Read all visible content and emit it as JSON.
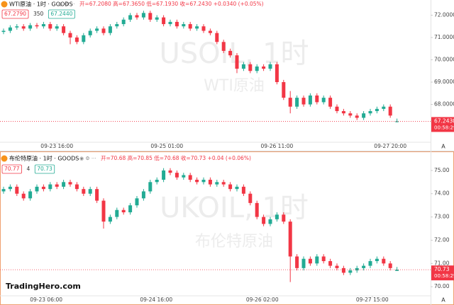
{
  "chart_data": [
    {
      "type": "candlestick",
      "title": "WTI原油 · 1时 · GOODS",
      "subtitle": "开=67.2080 高=67.3650 低=67.1930 收=67.2430 +0.0340 (+0.05%)",
      "quote": {
        "sell": "67.2790",
        "spread": "350",
        "buy": "67.2440"
      },
      "watermark": [
        "USOIL, 1时",
        "WTI原油"
      ],
      "up_color": "#22ab94",
      "down_color": "#f23645",
      "open": [
        71.25,
        71.3,
        71.45,
        71.5,
        71.4,
        71.55,
        71.5,
        71.6,
        71.4,
        71.5,
        71.2,
        71.0,
        70.8,
        71.1,
        71.3,
        71.4,
        71.2,
        71.5,
        71.6,
        71.8,
        72.0,
        71.9,
        72.1,
        71.8,
        71.9,
        71.6,
        71.7,
        71.5,
        71.6,
        71.4,
        71.5,
        71.3,
        71.2,
        70.8,
        70.4,
        70.2,
        69.6,
        69.8,
        69.5,
        69.7,
        69.6,
        69.8,
        69.0,
        68.3,
        67.9,
        68.3,
        68.0,
        68.4,
        68.1,
        68.3,
        67.9,
        67.7,
        67.6,
        67.5,
        67.4,
        67.6,
        67.7,
        67.8,
        67.9,
        67.208
      ],
      "high": [
        71.4,
        71.55,
        71.6,
        71.6,
        71.65,
        71.65,
        71.7,
        71.7,
        71.6,
        71.6,
        71.3,
        71.1,
        71.2,
        71.4,
        71.5,
        71.5,
        71.6,
        71.7,
        71.9,
        72.1,
        72.1,
        72.2,
        72.2,
        72.0,
        72.0,
        71.8,
        71.8,
        71.7,
        71.7,
        71.6,
        71.6,
        71.4,
        71.3,
        70.9,
        70.5,
        70.3,
        69.9,
        69.9,
        69.8,
        69.8,
        69.9,
        69.9,
        69.1,
        68.6,
        68.4,
        68.4,
        68.5,
        68.5,
        68.4,
        68.4,
        68.0,
        67.8,
        67.7,
        67.6,
        67.7,
        67.8,
        67.9,
        68.0,
        68.0,
        67.365
      ],
      "low": [
        71.15,
        71.2,
        71.35,
        71.3,
        71.3,
        71.4,
        71.4,
        71.3,
        71.3,
        71.1,
        70.7,
        70.7,
        70.7,
        71.0,
        71.2,
        71.1,
        71.1,
        71.4,
        71.5,
        71.7,
        71.8,
        71.8,
        71.7,
        71.7,
        71.5,
        71.5,
        71.4,
        71.4,
        71.3,
        71.3,
        71.2,
        71.1,
        70.7,
        70.3,
        70.1,
        69.4,
        69.5,
        69.4,
        69.4,
        69.5,
        69.5,
        68.9,
        68.2,
        67.6,
        67.8,
        67.9,
        67.9,
        68.0,
        68.0,
        67.8,
        67.6,
        67.5,
        67.4,
        67.3,
        67.3,
        67.5,
        67.6,
        67.7,
        67.4,
        67.193
      ],
      "close": [
        71.3,
        71.45,
        71.5,
        71.4,
        71.55,
        71.5,
        71.6,
        71.4,
        71.5,
        71.2,
        71.0,
        70.8,
        71.1,
        71.3,
        71.4,
        71.2,
        71.5,
        71.6,
        71.8,
        72.0,
        71.9,
        72.1,
        71.8,
        71.9,
        71.6,
        71.7,
        71.5,
        71.6,
        71.4,
        71.5,
        71.3,
        71.2,
        70.8,
        70.4,
        70.2,
        69.6,
        69.8,
        69.5,
        69.7,
        69.6,
        69.8,
        69.0,
        68.3,
        67.9,
        68.3,
        68.0,
        68.4,
        68.1,
        68.3,
        67.9,
        67.7,
        67.6,
        67.5,
        67.4,
        67.6,
        67.7,
        67.8,
        67.9,
        67.5,
        67.243
      ],
      "xticks": [
        {
          "value": 8,
          "label": "09-23 16:00"
        },
        {
          "value": 24.5,
          "label": "09-25 01:00"
        },
        {
          "value": 41,
          "label": "09-26 11:00"
        },
        {
          "value": 58,
          "label": "09-27 20:00"
        }
      ],
      "ylim": [
        66.4,
        72.3
      ],
      "yticks": [
        {
          "value": 68,
          "label": "68.0000"
        },
        {
          "value": 69,
          "label": "69.0000"
        },
        {
          "value": 70,
          "label": "70.0000"
        },
        {
          "value": 71,
          "label": "71.0000"
        },
        {
          "value": 72,
          "label": "72.0000"
        }
      ],
      "last_price": {
        "value": 67.243,
        "label": "67.2430"
      },
      "countdown": "00:58:29",
      "scale_button": "A"
    },
    {
      "type": "candlestick",
      "title": "布伦特原油 · 1时 · GOODS",
      "subtitle": "开=70.68 高=70.85 低=70.68 收=70.73 +0.04 (+0.06%)",
      "quote": {
        "sell": "70.77",
        "spread": "4",
        "buy": "70.73"
      },
      "watermark": [
        "UKOIL, 1时",
        "布伦特原油"
      ],
      "up_color": "#22ab94",
      "down_color": "#f23645",
      "open": [
        74.1,
        74.2,
        74.3,
        74.0,
        73.8,
        74.1,
        74.3,
        74.2,
        74.4,
        74.3,
        74.5,
        74.4,
        74.2,
        74.0,
        74.2,
        73.7,
        72.8,
        73.0,
        73.3,
        73.2,
        73.5,
        73.8,
        74.1,
        74.5,
        74.6,
        75.0,
        74.9,
        74.7,
        74.8,
        74.6,
        74.5,
        74.6,
        74.4,
        74.5,
        74.4,
        74.2,
        74.3,
        74.0,
        73.6,
        73.0,
        72.7,
        72.9,
        73.1,
        72.8,
        71.3,
        70.8,
        71.2,
        71.0,
        71.3,
        71.1,
        70.9,
        70.8,
        70.6,
        70.7,
        70.8,
        70.9,
        71.1,
        71.2,
        71.0,
        70.68
      ],
      "high": [
        74.3,
        74.4,
        74.4,
        74.1,
        74.2,
        74.4,
        74.4,
        74.5,
        74.5,
        74.6,
        74.6,
        74.5,
        74.3,
        74.3,
        74.3,
        73.8,
        73.1,
        73.4,
        73.4,
        73.6,
        73.9,
        74.2,
        74.6,
        74.7,
        75.1,
        75.1,
        75.0,
        74.9,
        74.9,
        74.7,
        74.7,
        74.7,
        74.6,
        74.6,
        74.5,
        74.4,
        74.4,
        74.1,
        73.7,
        73.1,
        73.0,
        73.2,
        73.2,
        72.9,
        71.4,
        71.3,
        71.3,
        71.4,
        71.4,
        71.2,
        71.0,
        70.9,
        70.8,
        70.9,
        71.0,
        71.2,
        71.3,
        71.3,
        71.1,
        70.85
      ],
      "low": [
        74.0,
        74.1,
        73.9,
        73.7,
        73.7,
        74.0,
        74.1,
        74.1,
        74.2,
        74.2,
        74.3,
        74.1,
        73.9,
        73.9,
        73.6,
        72.5,
        72.7,
        72.9,
        73.1,
        73.1,
        73.4,
        73.7,
        74.0,
        74.4,
        74.5,
        74.8,
        74.6,
        74.6,
        74.5,
        74.4,
        74.4,
        74.3,
        74.3,
        74.3,
        74.1,
        74.1,
        73.9,
        73.5,
        72.9,
        72.6,
        72.6,
        72.8,
        72.7,
        70.2,
        70.7,
        70.7,
        70.9,
        70.9,
        71.0,
        70.8,
        70.7,
        70.5,
        70.5,
        70.6,
        70.7,
        70.8,
        71.0,
        70.9,
        70.7,
        70.68
      ],
      "close": [
        74.2,
        74.3,
        74.0,
        73.8,
        74.1,
        74.3,
        74.2,
        74.4,
        74.3,
        74.5,
        74.4,
        74.2,
        74.0,
        74.2,
        73.7,
        72.8,
        73.0,
        73.3,
        73.2,
        73.5,
        73.8,
        74.1,
        74.5,
        74.6,
        75.0,
        74.9,
        74.7,
        74.8,
        74.6,
        74.5,
        74.6,
        74.4,
        74.5,
        74.4,
        74.2,
        74.3,
        74.0,
        73.6,
        73.0,
        72.7,
        72.9,
        73.1,
        72.8,
        71.3,
        70.8,
        71.2,
        71.0,
        71.3,
        71.1,
        70.9,
        70.8,
        70.6,
        70.7,
        70.8,
        70.9,
        71.1,
        71.2,
        71.0,
        70.8,
        70.73
      ],
      "xticks": [
        {
          "value": 6.4,
          "label": "09-23 06:00"
        },
        {
          "value": 22.9,
          "label": "09-24 16:00"
        },
        {
          "value": 38.8,
          "label": "09-26 02:00"
        },
        {
          "value": 55.3,
          "label": "09-27 15:00"
        }
      ],
      "ylim": [
        69.7,
        75.27
      ],
      "yticks": [
        {
          "value": 70,
          "label": "70.00"
        },
        {
          "value": 71,
          "label": "71.00"
        },
        {
          "value": 72,
          "label": "72.00"
        },
        {
          "value": 73,
          "label": "73.00"
        },
        {
          "value": 74,
          "label": "74.00"
        },
        {
          "value": 75,
          "label": "75.00"
        }
      ],
      "last_price": {
        "value": 70.73,
        "label": "70.73"
      },
      "countdown": "00:58:29",
      "scale_button": "A"
    }
  ],
  "logo": "TradingHero.com"
}
